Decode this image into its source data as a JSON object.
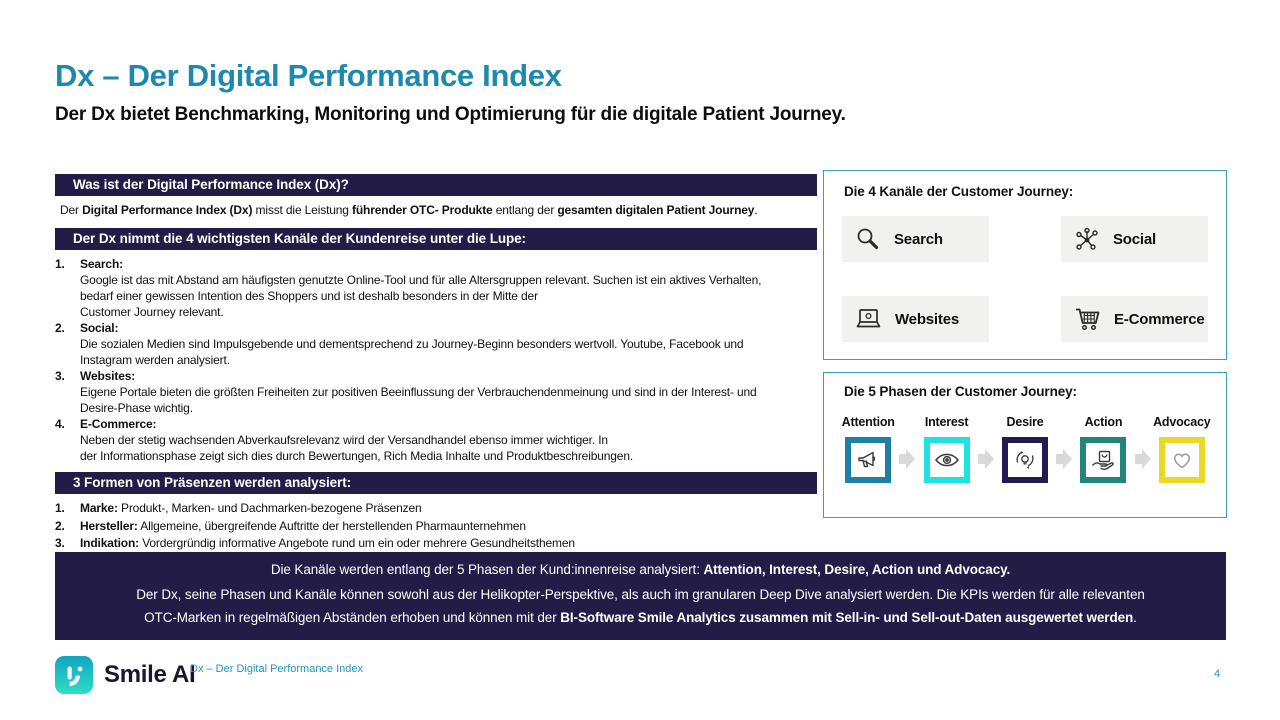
{
  "slide": {
    "title": "Dx – Der Digital Performance Index",
    "subtitle": "Der Dx bietet Benchmarking, Monitoring und Optimierung für die digitale Patient Journey.",
    "page_number": "4"
  },
  "colors": {
    "navy": "#221c47",
    "accent_teal": "#1d89ac",
    "panel_border": "#3c9fba",
    "tile_gray": "#f1f1ef"
  },
  "left": {
    "bar1": "Was ist der Digital Performance Index (Dx)?",
    "intro_rich": [
      {
        "t": "Der "
      },
      {
        "t": "Digital Performance Index (Dx)",
        "b": true
      },
      {
        "t": " misst die Leistung "
      },
      {
        "t": "führender OTC-  Produkte",
        "b": true
      },
      {
        "t": " entlang der "
      },
      {
        "t": "gesamten digitalen Patient Journey",
        "b": true
      },
      {
        "t": "."
      }
    ],
    "bar2": "Der Dx nimmt die 4 wichtigsten Kanäle der Kundenreise unter die Lupe:",
    "channels": [
      {
        "num": "1.",
        "title": "Search:",
        "body": "Google ist das mit Abstand am häufigsten genutzte Online-Tool und für alle  Altersgruppen relevant. Suchen ist ein aktives Verhalten,\nbedarf einer gewissen Intention des Shoppers und ist deshalb besonders in der Mitte der\nCustomer Journey relevant."
      },
      {
        "num": "2.",
        "title": "Social:",
        "body": "Die sozialen Medien sind Impulsgebende und dementsprechend zu  Journey-Beginn besonders wertvoll. Youtube, Facebook und\nInstagram werden  analysiert."
      },
      {
        "num": "3.",
        "title": "Websites:",
        "body": "Eigene Portale bieten die größten Freiheiten zur positiven Beeinflussung der Verbrauchendenmeinung und sind in der Interest- und\nDesire-Phase wichtig."
      },
      {
        "num": "4.",
        "title": "E-Commerce:",
        "body": "Neben der stetig wachsenden Abverkaufsrelevanz wird der Versandhandel ebenso immer wichtiger. In\nder Informationsphase zeigt sich dies durch Bewertungen, Rich Media Inhalte und Produktbeschreibungen."
      }
    ],
    "bar3": "3 Formen von Präsenzen werden analysiert:",
    "forms": [
      {
        "num": "1.",
        "title": "Marke:",
        "body": " Produkt-, Marken- und Dachmarken-bezogene Präsenzen"
      },
      {
        "num": "2.",
        "title": "Hersteller:",
        "body": " Allgemeine, übergreifende Auftritte der herstellenden Pharmaunternehmen"
      },
      {
        "num": "3.",
        "title": "Indikation:",
        "body": " Vordergründig informative Angebote rund um ein oder mehrere Gesundheitsthemen"
      }
    ]
  },
  "channels_panel": {
    "title": "Die 4 Kanäle der Customer Journey:",
    "tiles": [
      {
        "label": "Search",
        "icon": "search-icon"
      },
      {
        "label": "Social",
        "icon": "social-icon"
      },
      {
        "label": "Websites",
        "icon": "websites-icon"
      },
      {
        "label": "E-Commerce",
        "icon": "ecommerce-icon"
      }
    ]
  },
  "phases_panel": {
    "title": "Die 5 Phasen der Customer Journey:",
    "phases": [
      {
        "label": "Attention",
        "color": "#1b7fa6",
        "icon": "megaphone-icon"
      },
      {
        "label": "Interest",
        "color": "#1fe3e3",
        "icon": "eye-icon"
      },
      {
        "label": "Desire",
        "color": "#221c4e",
        "icon": "idea-cycle-icon"
      },
      {
        "label": "Action",
        "color": "#23857a",
        "icon": "purchase-hand-icon"
      },
      {
        "label": "Advocacy",
        "color": "#e9d922",
        "icon": "heart-icon"
      }
    ]
  },
  "banner": {
    "line1_rich": [
      {
        "t": "Die Kanäle werden entlang der 5 Phasen der Kund:innenreise analysiert: "
      },
      {
        "t": "Attention, Interest, Desire, Action und Advocacy.",
        "b": true
      }
    ],
    "line2_rich": [
      {
        "t": "Der Dx, seine Phasen und Kanäle können sowohl aus der Helikopter-Perspektive, als auch im granularen Deep Dive  analysiert werden. Die KPIs werden für alle relevanten\nOTC-Marken in  regelmäßigen Abständen erhoben und können mit der "
      },
      {
        "t": "BI-Software Smile Analytics zusammen  mit Sell-in- und Sell-out-Daten ausgewertet werden",
        "b": true
      },
      {
        "t": "."
      }
    ]
  },
  "footer": {
    "brand": "Smile AI",
    "doc_title": "Dx – Der Digital Performance Index"
  }
}
